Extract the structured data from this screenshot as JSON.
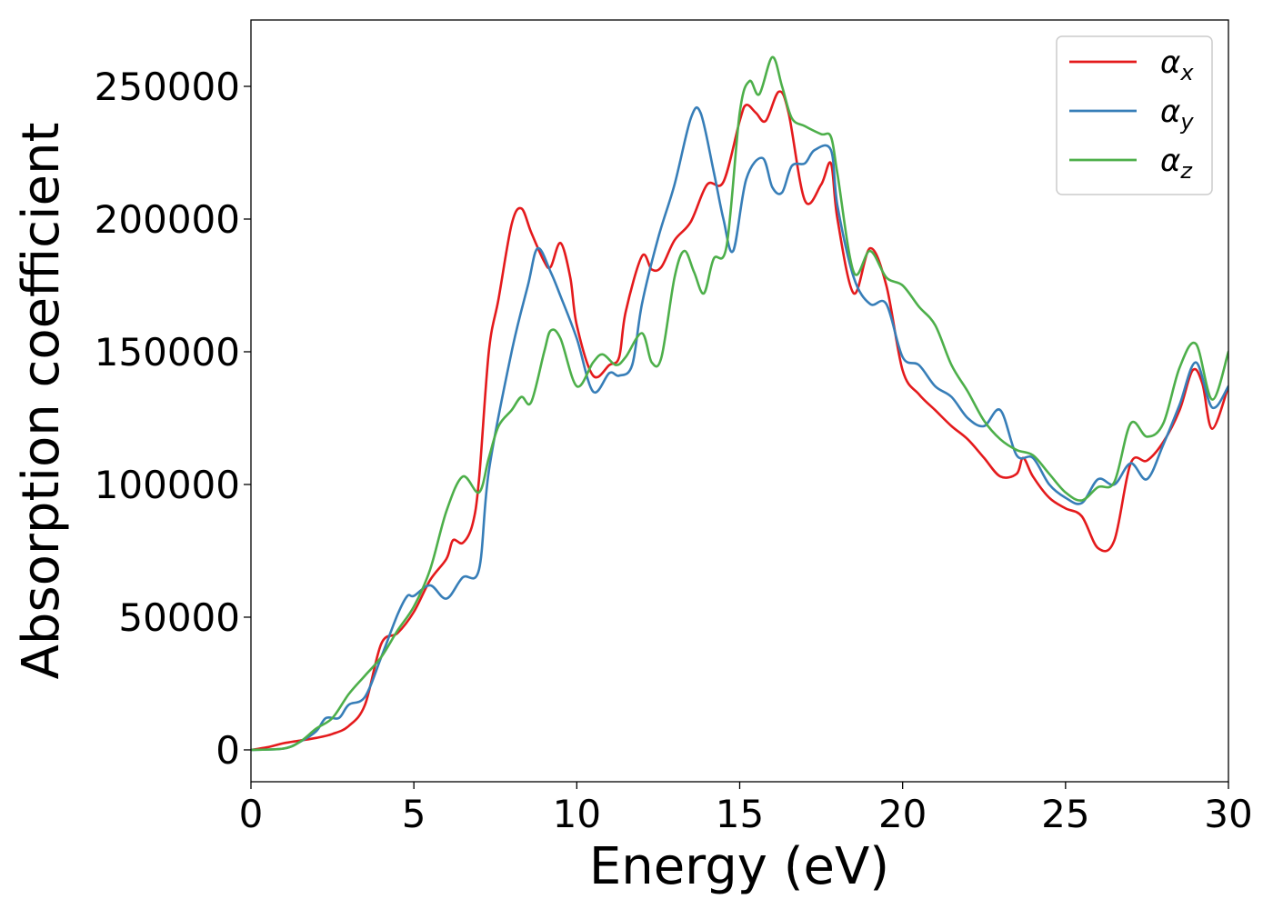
{
  "chart_data": {
    "type": "line",
    "title": "",
    "xlabel": "Energy (eV)",
    "ylabel": "Absorption coefficient",
    "xlim": [
      0,
      30
    ],
    "ylim": [
      -12000,
      275000
    ],
    "xticks": [
      0,
      5,
      10,
      15,
      20,
      25,
      30
    ],
    "yticks": [
      0,
      50000,
      100000,
      150000,
      200000,
      250000
    ],
    "grid": false,
    "legend_position": "top-right",
    "series": [
      {
        "name": "αx",
        "label_base": "α",
        "label_sub": "x",
        "color": "#e41a1c",
        "points": [
          [
            0,
            0
          ],
          [
            0.5,
            1000
          ],
          [
            1,
            2500
          ],
          [
            1.5,
            3500
          ],
          [
            2,
            4500
          ],
          [
            2.5,
            6000
          ],
          [
            3,
            9000
          ],
          [
            3.5,
            17000
          ],
          [
            4,
            40000
          ],
          [
            4.5,
            44000
          ],
          [
            5,
            52000
          ],
          [
            5.5,
            64000
          ],
          [
            6,
            72000
          ],
          [
            6.2,
            79000
          ],
          [
            6.5,
            78000
          ],
          [
            6.8,
            85000
          ],
          [
            7,
            102000
          ],
          [
            7.3,
            150000
          ],
          [
            7.6,
            170000
          ],
          [
            8,
            198000
          ],
          [
            8.3,
            204000
          ],
          [
            8.6,
            195000
          ],
          [
            9,
            184000
          ],
          [
            9.2,
            182000
          ],
          [
            9.5,
            191000
          ],
          [
            9.8,
            178000
          ],
          [
            10,
            160000
          ],
          [
            10.5,
            141000
          ],
          [
            11,
            145000
          ],
          [
            11.3,
            148000
          ],
          [
            11.5,
            165000
          ],
          [
            12,
            186000
          ],
          [
            12.3,
            181000
          ],
          [
            12.6,
            182000
          ],
          [
            13,
            192000
          ],
          [
            13.5,
            199000
          ],
          [
            14,
            213000
          ],
          [
            14.5,
            214000
          ],
          [
            15,
            237000
          ],
          [
            15.2,
            243000
          ],
          [
            15.5,
            240000
          ],
          [
            15.8,
            237000
          ],
          [
            16.2,
            248000
          ],
          [
            16.5,
            240000
          ],
          [
            17,
            207000
          ],
          [
            17.5,
            213000
          ],
          [
            17.8,
            221000
          ],
          [
            18,
            200000
          ],
          [
            18.5,
            172000
          ],
          [
            19,
            189000
          ],
          [
            19.5,
            175000
          ],
          [
            20,
            143000
          ],
          [
            20.5,
            134000
          ],
          [
            21,
            128000
          ],
          [
            21.5,
            122000
          ],
          [
            22,
            117000
          ],
          [
            22.5,
            110000
          ],
          [
            23,
            103000
          ],
          [
            23.5,
            104000
          ],
          [
            23.7,
            110000
          ],
          [
            24,
            103000
          ],
          [
            24.5,
            95000
          ],
          [
            25,
            91000
          ],
          [
            25.5,
            88000
          ],
          [
            26,
            76000
          ],
          [
            26.5,
            79000
          ],
          [
            27,
            108000
          ],
          [
            27.5,
            109000
          ],
          [
            28,
            116000
          ],
          [
            28.5,
            128000
          ],
          [
            28.9,
            143000
          ],
          [
            29.2,
            138000
          ],
          [
            29.5,
            121000
          ],
          [
            30,
            137000
          ]
        ]
      },
      {
        "name": "αy",
        "label_base": "α",
        "label_sub": "y",
        "color": "#377eb8",
        "points": [
          [
            0,
            0
          ],
          [
            1,
            500
          ],
          [
            1.5,
            3000
          ],
          [
            2,
            7000
          ],
          [
            2.3,
            12000
          ],
          [
            2.7,
            12000
          ],
          [
            3,
            17000
          ],
          [
            3.5,
            20000
          ],
          [
            4,
            35000
          ],
          [
            4.5,
            51000
          ],
          [
            4.8,
            58000
          ],
          [
            5,
            58000
          ],
          [
            5.5,
            62000
          ],
          [
            6,
            57000
          ],
          [
            6.5,
            65000
          ],
          [
            7,
            68000
          ],
          [
            7.3,
            105000
          ],
          [
            8,
            150000
          ],
          [
            8.5,
            175000
          ],
          [
            8.8,
            189000
          ],
          [
            9.2,
            180000
          ],
          [
            9.5,
            171000
          ],
          [
            10,
            155000
          ],
          [
            10.5,
            135000
          ],
          [
            11,
            142000
          ],
          [
            11.3,
            141000
          ],
          [
            11.7,
            145000
          ],
          [
            12,
            168000
          ],
          [
            12.5,
            193000
          ],
          [
            13,
            213000
          ],
          [
            13.5,
            238000
          ],
          [
            13.8,
            240000
          ],
          [
            14.2,
            218000
          ],
          [
            14.5,
            200000
          ],
          [
            14.8,
            188000
          ],
          [
            15.2,
            215000
          ],
          [
            15.7,
            223000
          ],
          [
            16,
            212000
          ],
          [
            16.3,
            210000
          ],
          [
            16.6,
            220000
          ],
          [
            17,
            221000
          ],
          [
            17.3,
            226000
          ],
          [
            17.8,
            226000
          ],
          [
            18,
            205000
          ],
          [
            18.5,
            178000
          ],
          [
            19,
            168000
          ],
          [
            19.5,
            168000
          ],
          [
            20,
            148000
          ],
          [
            20.5,
            145000
          ],
          [
            21,
            137000
          ],
          [
            21.5,
            133000
          ],
          [
            22,
            125000
          ],
          [
            22.5,
            122000
          ],
          [
            23,
            128000
          ],
          [
            23.5,
            111000
          ],
          [
            24,
            110000
          ],
          [
            24.5,
            100000
          ],
          [
            25,
            95000
          ],
          [
            25.5,
            93000
          ],
          [
            26,
            102000
          ],
          [
            26.5,
            100000
          ],
          [
            27,
            108000
          ],
          [
            27.5,
            102000
          ],
          [
            28,
            115000
          ],
          [
            28.5,
            130000
          ],
          [
            29,
            146000
          ],
          [
            29.5,
            129000
          ],
          [
            30,
            137000
          ]
        ]
      },
      {
        "name": "αz",
        "label_base": "α",
        "label_sub": "z",
        "color": "#4daf4a",
        "points": [
          [
            0,
            0
          ],
          [
            1,
            500
          ],
          [
            1.5,
            3000
          ],
          [
            2,
            8000
          ],
          [
            2.5,
            12000
          ],
          [
            3,
            21000
          ],
          [
            3.5,
            28000
          ],
          [
            4,
            35000
          ],
          [
            4.5,
            45000
          ],
          [
            5,
            54000
          ],
          [
            5.5,
            68000
          ],
          [
            6,
            90000
          ],
          [
            6.5,
            103000
          ],
          [
            7,
            97000
          ],
          [
            7.3,
            110000
          ],
          [
            7.6,
            122000
          ],
          [
            8,
            128000
          ],
          [
            8.3,
            133000
          ],
          [
            8.6,
            131000
          ],
          [
            9,
            150000
          ],
          [
            9.2,
            158000
          ],
          [
            9.5,
            155000
          ],
          [
            10,
            137000
          ],
          [
            10.5,
            146000
          ],
          [
            10.8,
            149000
          ],
          [
            11.2,
            145000
          ],
          [
            11.5,
            148000
          ],
          [
            12,
            157000
          ],
          [
            12.3,
            146000
          ],
          [
            12.6,
            148000
          ],
          [
            13,
            178000
          ],
          [
            13.3,
            188000
          ],
          [
            13.6,
            180000
          ],
          [
            13.9,
            172000
          ],
          [
            14.2,
            185000
          ],
          [
            14.6,
            190000
          ],
          [
            15,
            240000
          ],
          [
            15.3,
            252000
          ],
          [
            15.6,
            247000
          ],
          [
            16,
            261000
          ],
          [
            16.3,
            250000
          ],
          [
            16.6,
            238000
          ],
          [
            17,
            235000
          ],
          [
            17.5,
            232000
          ],
          [
            17.8,
            231000
          ],
          [
            18,
            217000
          ],
          [
            18.5,
            180000
          ],
          [
            19,
            188000
          ],
          [
            19.5,
            178000
          ],
          [
            20,
            175000
          ],
          [
            20.5,
            167000
          ],
          [
            21,
            160000
          ],
          [
            21.5,
            145000
          ],
          [
            22,
            135000
          ],
          [
            22.5,
            124000
          ],
          [
            23,
            117000
          ],
          [
            23.5,
            113000
          ],
          [
            24,
            111000
          ],
          [
            24.5,
            104000
          ],
          [
            25,
            97000
          ],
          [
            25.5,
            94000
          ],
          [
            26,
            99000
          ],
          [
            26.5,
            101000
          ],
          [
            27,
            123000
          ],
          [
            27.5,
            118000
          ],
          [
            28,
            123000
          ],
          [
            28.5,
            144000
          ],
          [
            29,
            153000
          ],
          [
            29.5,
            132000
          ],
          [
            30,
            150000
          ]
        ]
      }
    ]
  }
}
